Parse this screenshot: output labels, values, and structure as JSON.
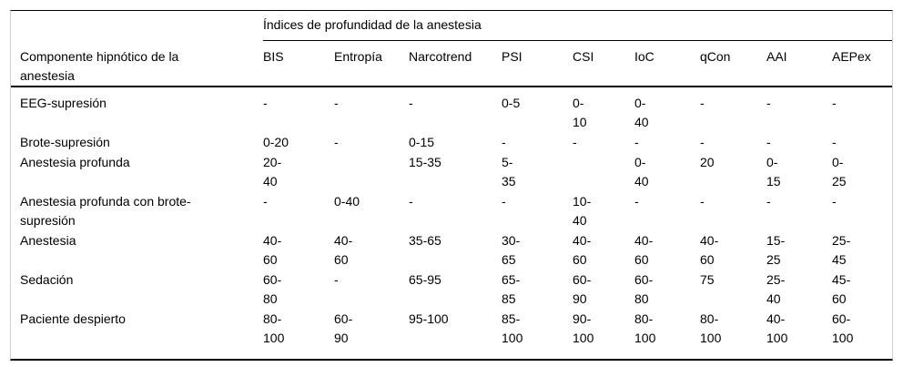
{
  "table": {
    "span_header": "Índices de profundidad de la anestesia",
    "corner_header": "Componente hipnótico de la\nanestesia",
    "columns": [
      "BIS",
      "Entropía",
      "Narcotrend",
      "PSI",
      "CSI",
      "IoC",
      "qCon",
      "AAI",
      "AEPex"
    ],
    "rows": [
      {
        "label": "EEG-supresión",
        "values": [
          "-",
          "-",
          "-",
          "0-5",
          "0-\n10",
          "0-\n40",
          "-",
          "-",
          "-"
        ]
      },
      {
        "label": "Brote-supresión",
        "values": [
          "0-20",
          "-",
          "0-15",
          "-",
          "-",
          "-",
          "-",
          "-",
          "-"
        ]
      },
      {
        "label": "Anestesia profunda",
        "values": [
          "20-\n40",
          "",
          "15-35",
          "5-\n35",
          "",
          "0-\n40",
          "20",
          "0-\n15",
          "0-\n25"
        ]
      },
      {
        "label": "Anestesia profunda con brote-\nsupresión",
        "values": [
          "-",
          "0-40",
          "-",
          "-",
          "10-\n40",
          "-",
          "-",
          "-",
          "-"
        ]
      },
      {
        "label": "Anestesia",
        "values": [
          "40-\n60",
          "40-\n60",
          "35-65",
          "30-\n65",
          "40-\n60",
          "40-\n60",
          "40-\n60",
          "15-\n25",
          "25-\n45"
        ]
      },
      {
        "label": "Sedación",
        "values": [
          "60-\n80",
          "-",
          "65-95",
          "65-\n85",
          "60-\n90",
          "60-\n80",
          "75",
          "25-\n40",
          "45-\n60"
        ]
      },
      {
        "label": "Paciente despierto",
        "values": [
          "80-\n100",
          "60-\n90",
          "95-100",
          "85-\n100",
          "90-\n100",
          "80-\n100",
          "80-\n100",
          "40-\n100",
          "60-\n100"
        ]
      }
    ],
    "colors": {
      "rule": "#000000",
      "side_border": "#cccccc",
      "text": "#000000",
      "background": "#ffffff"
    }
  }
}
